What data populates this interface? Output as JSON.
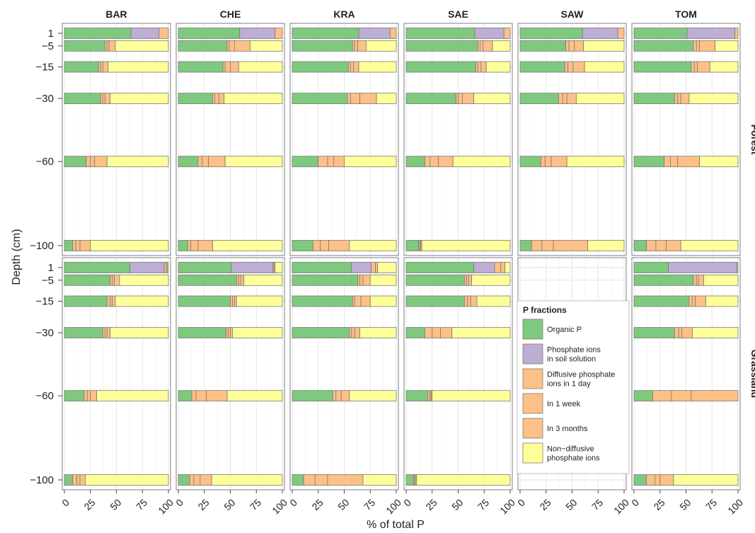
{
  "chart_data": {
    "type": "bar",
    "orientation": "horizontal-stacked",
    "xlabel": "% of total P",
    "ylabel": "Depth (cm)",
    "xlim": [
      0,
      100
    ],
    "x_ticks": [
      "0",
      "25",
      "50",
      "75",
      "100"
    ],
    "depths": [
      1,
      -5,
      -15,
      -30,
      -60,
      -100
    ],
    "depth_labels": [
      "1",
      "−5",
      "−15",
      "−30",
      "−60",
      "−100"
    ],
    "sites": [
      "BAR",
      "CHE",
      "KRA",
      "SAE",
      "SAW",
      "TOM"
    ],
    "land_uses": [
      "Forest",
      "Grassland"
    ],
    "legend": {
      "title": "P fractions",
      "placement": "inside grassland SAW panel",
      "items": [
        {
          "key": "organic",
          "label_lines": [
            "Organic P"
          ],
          "color": "#7fc97f"
        },
        {
          "key": "solution",
          "label_lines": [
            "Phosphate ions",
            "in soil solution"
          ],
          "color": "#beaed4"
        },
        {
          "key": "day",
          "label_lines": [
            "Diffusive phosphate",
            "ions in 1 day"
          ],
          "color": "#fdc086"
        },
        {
          "key": "week",
          "label_lines": [
            "In 1 week"
          ],
          "color": "#fdc086"
        },
        {
          "key": "months",
          "label_lines": [
            "In 3 months"
          ],
          "color": "#fdc086"
        },
        {
          "key": "nondiffusive",
          "label_lines": [
            "Non−diffusive",
            "phosphate ions"
          ],
          "color": "#ffff99"
        }
      ]
    },
    "panels": [
      {
        "land_use": "Forest",
        "site": "BAR",
        "bars": [
          {
            "depth": 1,
            "values": [
              64,
              27,
              0,
              0,
              0,
              0
            ],
            "tail": [
              9,
              0,
              0
            ]
          },
          {
            "depth": -5,
            "values": [
              39,
              0,
              2,
              2,
              6,
              51
            ]
          },
          {
            "depth": -15,
            "values": [
              33,
              0,
              2,
              2,
              5,
              58
            ]
          },
          {
            "depth": -30,
            "values": [
              35,
              0,
              2,
              2,
              5,
              56
            ]
          },
          {
            "depth": -60,
            "values": [
              21,
              0,
              4,
              4,
              12,
              59
            ]
          },
          {
            "depth": -100,
            "values": [
              8,
              0,
              3,
              4,
              10,
              75
            ]
          }
        ]
      },
      {
        "land_use": "Forest",
        "site": "CHE",
        "bars": [
          {
            "depth": 1,
            "values": [
              59,
              34,
              0,
              0,
              0,
              0
            ],
            "tail": [
              7,
              0,
              0
            ]
          },
          {
            "depth": -5,
            "values": [
              47,
              0,
              2,
              5,
              15,
              31
            ]
          },
          {
            "depth": -15,
            "values": [
              43,
              0,
              2,
              5,
              8,
              42
            ]
          },
          {
            "depth": -30,
            "values": [
              33,
              0,
              2,
              4,
              5,
              56
            ]
          },
          {
            "depth": -60,
            "values": [
              19,
              0,
              4,
              6,
              16,
              55
            ]
          },
          {
            "depth": -100,
            "values": [
              9,
              0,
              3,
              7,
              14,
              67
            ]
          }
        ]
      },
      {
        "land_use": "Forest",
        "site": "KRA",
        "bars": [
          {
            "depth": 1,
            "values": [
              64,
              30,
              0,
              0,
              0,
              0
            ],
            "tail": [
              6,
              0,
              0
            ]
          },
          {
            "depth": -5,
            "values": [
              58,
              0,
              2,
              3,
              8,
              29
            ]
          },
          {
            "depth": -15,
            "values": [
              54,
              0,
              2,
              3,
              5,
              36
            ]
          },
          {
            "depth": -30,
            "values": [
              53,
              0,
              3,
              9,
              16,
              19
            ]
          },
          {
            "depth": -60,
            "values": [
              25,
              0,
              9,
              6,
              10,
              50
            ]
          },
          {
            "depth": -100,
            "values": [
              20,
              0,
              7,
              8,
              20,
              45
            ]
          }
        ]
      },
      {
        "land_use": "Forest",
        "site": "SAE",
        "bars": [
          {
            "depth": 1,
            "values": [
              66,
              28,
              0,
              0,
              0,
              0
            ],
            "tail": [
              6,
              0,
              0
            ]
          },
          {
            "depth": -5,
            "values": [
              69,
              0,
              2,
              3,
              9,
              17
            ]
          },
          {
            "depth": -15,
            "values": [
              67,
              0,
              2,
              3,
              5,
              23
            ]
          },
          {
            "depth": -30,
            "values": [
              48,
              0,
              2,
              4,
              11,
              35
            ]
          },
          {
            "depth": -60,
            "values": [
              18,
              0,
              5,
              8,
              14,
              55
            ]
          },
          {
            "depth": -100,
            "values": [
              12,
              0,
              1,
              1,
              1,
              85
            ]
          }
        ]
      },
      {
        "land_use": "Forest",
        "site": "SAW",
        "bars": [
          {
            "depth": 1,
            "values": [
              60,
              34,
              0,
              0,
              0,
              0
            ],
            "tail": [
              6,
              0,
              0
            ]
          },
          {
            "depth": -5,
            "values": [
              44,
              0,
              3,
              5,
              9,
              39
            ]
          },
          {
            "depth": -15,
            "values": [
              43,
              0,
              3,
              5,
              11,
              38
            ]
          },
          {
            "depth": -30,
            "values": [
              37,
              0,
              4,
              4,
              9,
              46
            ]
          },
          {
            "depth": -60,
            "values": [
              20,
              0,
              4,
              6,
              15,
              55
            ]
          },
          {
            "depth": -100,
            "values": [
              11,
              0,
              10,
              11,
              33,
              35
            ]
          }
        ]
      },
      {
        "land_use": "Forest",
        "site": "TOM",
        "bars": [
          {
            "depth": 1,
            "values": [
              51,
              46,
              0,
              0,
              0,
              0
            ],
            "tail": [
              3,
              0,
              0
            ]
          },
          {
            "depth": -5,
            "values": [
              57,
              0,
              3,
              3,
              15,
              22
            ]
          },
          {
            "depth": -15,
            "values": [
              55,
              0,
              3,
              3,
              12,
              27
            ]
          },
          {
            "depth": -30,
            "values": [
              39,
              0,
              3,
              3,
              8,
              47
            ]
          },
          {
            "depth": -60,
            "values": [
              29,
              0,
              6,
              7,
              21,
              37
            ]
          },
          {
            "depth": -100,
            "values": [
              12,
              0,
              9,
              10,
              14,
              55
            ]
          }
        ]
      },
      {
        "land_use": "Grassland",
        "site": "BAR",
        "bars": [
          {
            "depth": 1,
            "values": [
              63,
              33,
              0,
              0,
              0,
              0
            ],
            "tail": [
              2,
              1,
              1
            ]
          },
          {
            "depth": -5,
            "values": [
              44,
              0,
              2,
              2,
              5,
              47
            ]
          },
          {
            "depth": -15,
            "values": [
              41,
              0,
              3,
              2,
              3,
              51
            ]
          },
          {
            "depth": -30,
            "values": [
              37,
              0,
              2,
              2,
              3,
              56
            ]
          },
          {
            "depth": -60,
            "values": [
              19,
              0,
              3,
              3,
              6,
              69
            ]
          },
          {
            "depth": -100,
            "values": [
              8,
              0,
              4,
              3,
              5,
              80
            ]
          }
        ]
      },
      {
        "land_use": "Grassland",
        "site": "CHE",
        "bars": [
          {
            "depth": 1,
            "values": [
              51,
              40,
              0,
              0,
              0,
              0
            ],
            "tail": [
              1,
              1,
              7
            ]
          },
          {
            "depth": -5,
            "values": [
              56,
              0,
              2,
              2,
              3,
              37
            ]
          },
          {
            "depth": -15,
            "values": [
              50,
              0,
              2,
              2,
              2,
              44
            ]
          },
          {
            "depth": -30,
            "values": [
              46,
              0,
              2,
              2,
              2,
              48
            ]
          },
          {
            "depth": -60,
            "values": [
              13,
              0,
              4,
              10,
              20,
              53
            ]
          },
          {
            "depth": -100,
            "values": [
              11,
              0,
              4,
              6,
              11,
              68
            ]
          }
        ]
      },
      {
        "land_use": "Grassland",
        "site": "KRA",
        "bars": [
          {
            "depth": 1,
            "values": [
              57,
              19,
              0,
              0,
              0,
              0
            ],
            "tail": [
              4,
              2,
              18
            ]
          },
          {
            "depth": -5,
            "values": [
              63,
              0,
              2,
              3,
              7,
              25
            ]
          },
          {
            "depth": -15,
            "values": [
              58,
              0,
              2,
              6,
              9,
              25
            ]
          },
          {
            "depth": -30,
            "values": [
              55,
              0,
              2,
              3,
              5,
              35
            ]
          },
          {
            "depth": -60,
            "values": [
              39,
              0,
              3,
              5,
              8,
              45
            ]
          },
          {
            "depth": -100,
            "values": [
              11,
              0,
              11,
              12,
              34,
              32
            ]
          }
        ]
      },
      {
        "land_use": "Grassland",
        "site": "SAE",
        "bars": [
          {
            "depth": 1,
            "values": [
              65,
              20,
              0,
              0,
              0,
              0
            ],
            "tail": [
              6,
              4,
              5
            ]
          },
          {
            "depth": -5,
            "values": [
              56,
              0,
              2,
              2,
              3,
              37
            ]
          },
          {
            "depth": -15,
            "values": [
              56,
              0,
              3,
              3,
              6,
              32
            ]
          },
          {
            "depth": -30,
            "values": [
              18,
              0,
              7,
              8,
              11,
              56
            ]
          },
          {
            "depth": -60,
            "values": [
              21,
              0,
              2,
              1,
              1,
              75
            ]
          },
          {
            "depth": -100,
            "values": [
              7,
              0,
              1,
              1,
              1,
              90
            ]
          }
        ]
      },
      {
        "land_use": "Grassland",
        "site": "SAW",
        "bars": []
      },
      {
        "land_use": "Grassland",
        "site": "TOM",
        "bars": [
          {
            "depth": 1,
            "values": [
              33,
              66,
              0,
              0,
              0,
              0
            ],
            "tail": [
              1,
              0,
              0
            ]
          },
          {
            "depth": -5,
            "values": [
              57,
              0,
              3,
              2,
              5,
              33
            ]
          },
          {
            "depth": -15,
            "values": [
              53,
              0,
              3,
              3,
              10,
              31
            ]
          },
          {
            "depth": -30,
            "values": [
              39,
              0,
              4,
              3,
              10,
              44
            ]
          },
          {
            "depth": -60,
            "values": [
              18,
              0,
              18,
              19,
              45,
              0
            ]
          },
          {
            "depth": -100,
            "values": [
              12,
              0,
              8,
              5,
              13,
              62
            ]
          }
        ]
      }
    ]
  }
}
